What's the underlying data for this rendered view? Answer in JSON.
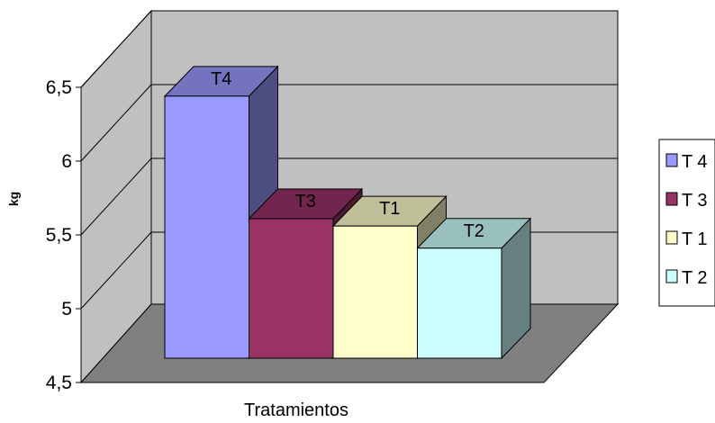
{
  "chart_data": {
    "type": "bar",
    "title": "",
    "xlabel": "Tratamientos",
    "ylabel": "kg",
    "ylim": [
      4.5,
      6.5
    ],
    "y_ticks": [
      "4,5",
      "5",
      "5,5",
      "6",
      "6,5"
    ],
    "y_tick_values": [
      4.5,
      5.0,
      5.5,
      6.0,
      6.5
    ],
    "grid": true,
    "legend_position": "right",
    "three_d": true,
    "categories": [
      "T 4",
      "T 3",
      "T 1",
      "T 2"
    ],
    "bar_labels": [
      "T4",
      "T3",
      "T1",
      "T2"
    ],
    "values": [
      6.44,
      5.61,
      5.56,
      5.41
    ],
    "colors": [
      "#9999ff",
      "#993366",
      "#ffffcc",
      "#ccffff"
    ],
    "side_colors": [
      "#4d4d80",
      "#4d1a33",
      "#808066",
      "#668080"
    ],
    "top_colors": [
      "#7373bf",
      "#73264d",
      "#bfbf99",
      "#99bfbf"
    ]
  }
}
